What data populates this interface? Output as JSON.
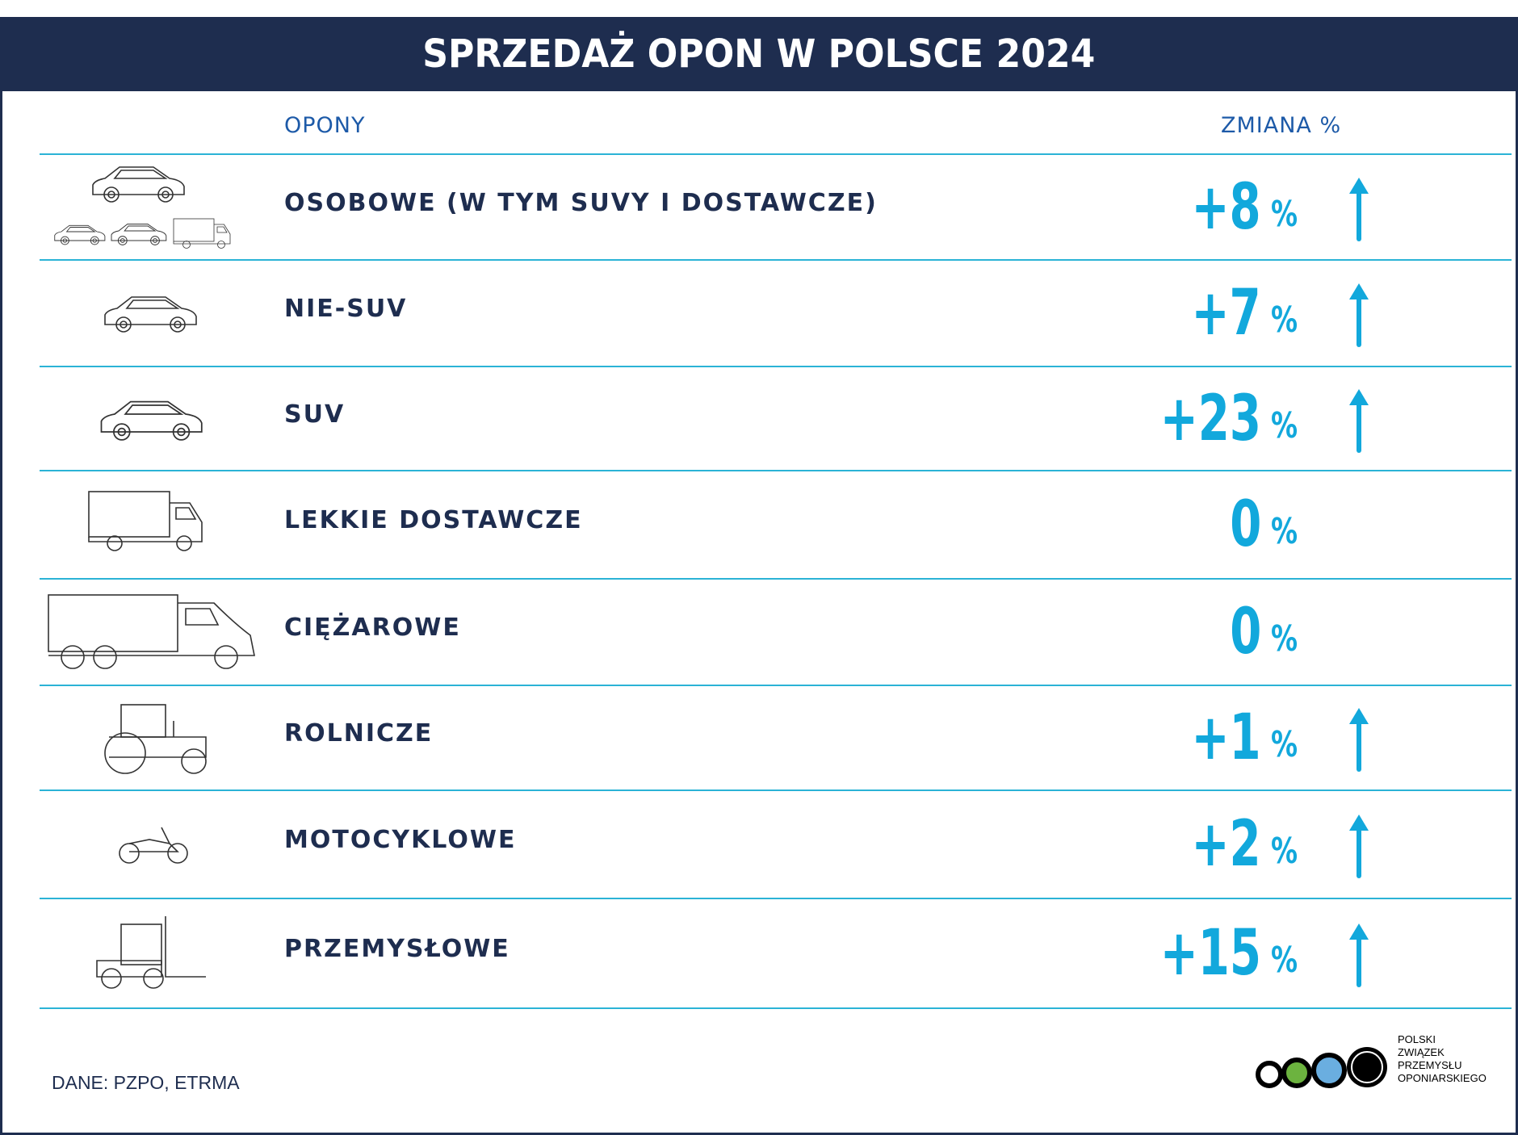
{
  "title": "SPRZEDAŻ OPON W POLSCE 2024",
  "columns": {
    "tires": "OPONY",
    "change": "ZMIANA %"
  },
  "rows": [
    {
      "label": "OSOBOWE (W TYM SUVY I DOSTAWCZE)",
      "value": "+8",
      "unit": "%",
      "trend": "up",
      "icon": "car-group-icon"
    },
    {
      "label": "NIE-SUV",
      "value": "+7",
      "unit": "%",
      "trend": "up",
      "icon": "car-icon"
    },
    {
      "label": "SUV",
      "value": "+23",
      "unit": "%",
      "trend": "up",
      "icon": "suv-icon"
    },
    {
      "label": "LEKKIE DOSTAWCZE",
      "value": "0",
      "unit": "%",
      "trend": "none",
      "icon": "van-icon"
    },
    {
      "label": "CIĘŻAROWE",
      "value": "0",
      "unit": "%",
      "trend": "none",
      "icon": "truck-icon"
    },
    {
      "label": "ROLNICZE",
      "value": "+1",
      "unit": "%",
      "trend": "up",
      "icon": "tractor-icon"
    },
    {
      "label": "MOTOCYKLOWE",
      "value": "+2",
      "unit": "%",
      "trend": "up",
      "icon": "motorcycle-icon"
    },
    {
      "label": "PRZEMYSŁOWE",
      "value": "+15",
      "unit": "%",
      "trend": "up",
      "icon": "forklift-icon"
    }
  ],
  "source": "DANE: PZPO, ETRMA",
  "logo": {
    "lines": [
      "POLSKI",
      "ZWIĄZEK",
      "PRZEMYSŁU",
      "OPONIARSKIEGO"
    ],
    "colors": [
      "#ffffff",
      "#6cb33f",
      "#6aaee0",
      "#000000"
    ]
  },
  "colors": {
    "navy": "#1e2d4f",
    "accent": "#12a8dc",
    "line": "#2bb3d6"
  }
}
